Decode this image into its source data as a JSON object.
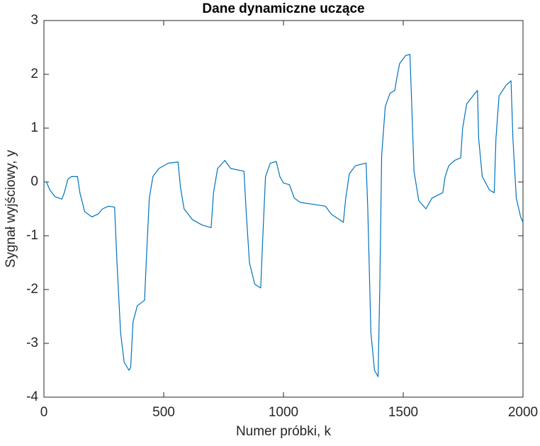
{
  "chart_data": {
    "type": "line",
    "title": "Dane dynamiczne uczące",
    "x_label": "Numer próbki, k",
    "y_label": "Sygnał wyjściowy, y",
    "x": [
      0,
      10,
      25,
      45,
      75,
      85,
      100,
      115,
      140,
      150,
      170,
      200,
      225,
      245,
      270,
      295,
      305,
      320,
      335,
      355,
      362,
      372,
      390,
      420,
      428,
      440,
      455,
      480,
      520,
      560,
      570,
      585,
      620,
      660,
      698,
      708,
      725,
      755,
      780,
      835,
      845,
      858,
      880,
      905,
      912,
      925,
      945,
      970,
      985,
      1000,
      1025,
      1045,
      1070,
      1130,
      1175,
      1200,
      1250,
      1260,
      1275,
      1300,
      1345,
      1352,
      1365,
      1380,
      1395,
      1402,
      1410,
      1425,
      1445,
      1465,
      1472,
      1485,
      1510,
      1528,
      1535,
      1545,
      1565,
      1595,
      1620,
      1665,
      1675,
      1690,
      1715,
      1740,
      1748,
      1765,
      1800,
      1810,
      1815,
      1830,
      1860,
      1880,
      1887,
      1900,
      1930,
      1950,
      1958,
      1972,
      1990,
      2000
    ],
    "series": [
      {
        "color": "#0072bd",
        "values": [
          0,
          0,
          -0.15,
          -0.27,
          -0.32,
          -0.2,
          0.05,
          0.1,
          0.1,
          -0.2,
          -0.55,
          -0.65,
          -0.6,
          -0.5,
          -0.45,
          -0.47,
          -1.5,
          -2.8,
          -3.35,
          -3.5,
          -3.45,
          -2.6,
          -2.3,
          -2.2,
          -1.4,
          -0.3,
          0.1,
          0.25,
          0.35,
          0.37,
          -0.1,
          -0.5,
          -0.7,
          -0.8,
          -0.85,
          -0.2,
          0.25,
          0.4,
          0.25,
          0.2,
          -0.6,
          -1.5,
          -1.9,
          -1.97,
          -1.2,
          0.1,
          0.35,
          0.38,
          0.1,
          -0.02,
          -0.05,
          -0.3,
          -0.38,
          -0.42,
          -0.45,
          -0.6,
          -0.75,
          -0.3,
          0.15,
          0.3,
          0.35,
          -0.5,
          -2.8,
          -3.5,
          -3.62,
          -2,
          0.5,
          1.4,
          1.65,
          1.7,
          1.9,
          2.2,
          2.35,
          2.37,
          1.5,
          0.2,
          -0.35,
          -0.5,
          -0.3,
          -0.2,
          0.1,
          0.3,
          0.4,
          0.45,
          1.0,
          1.45,
          1.65,
          1.7,
          0.8,
          0.1,
          -0.15,
          -0.2,
          0.8,
          1.6,
          1.8,
          1.88,
          0.8,
          -0.3,
          -0.65,
          -0.75
        ]
      }
    ],
    "xlim": [
      0,
      2000
    ],
    "xticks": [
      0,
      500,
      1000,
      1500,
      2000
    ],
    "ylim": [
      -4,
      3
    ],
    "yticks": [
      -4,
      -3,
      -2,
      -1,
      0,
      1,
      2,
      3
    ],
    "grid": false
  }
}
